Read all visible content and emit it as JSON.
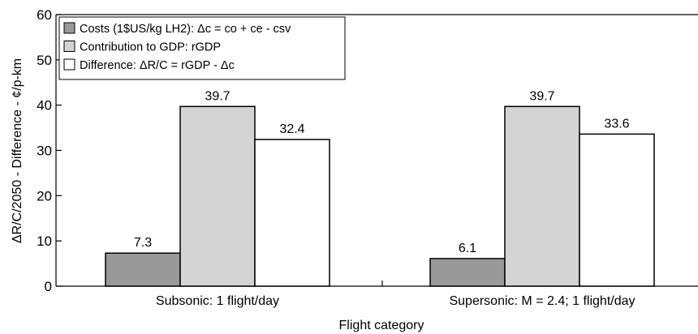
{
  "chart_data": {
    "type": "bar",
    "categories": [
      "Subsonic: 1 flight/day",
      "Supersonic: M = 2.4; 1 flight/day"
    ],
    "series": [
      {
        "name": "Costs (1$US/kg LH2): Δc =  co + ce - csv",
        "values": [
          7.3,
          6.1
        ],
        "color": "#999999"
      },
      {
        "name": "Contribution to GDP: rGDP",
        "values": [
          39.7,
          39.7
        ],
        "color": "#d4d4d4"
      },
      {
        "name": "Difference: ΔR/C = rGDP - Δc",
        "values": [
          32.4,
          33.6
        ],
        "color": "#ffffff"
      }
    ],
    "data_labels": [
      [
        "7.3",
        "6.1"
      ],
      [
        "39.7",
        "39.7"
      ],
      [
        "32.4",
        "33.6"
      ]
    ],
    "xlabel": "Flight category",
    "ylabel": "ΔR/C/2050 - Difference - ¢/p-km",
    "ylim": [
      0,
      60
    ],
    "yticks": [
      0,
      10,
      20,
      30,
      40,
      50,
      60
    ],
    "legend_position": "top-left",
    "grid": false
  }
}
